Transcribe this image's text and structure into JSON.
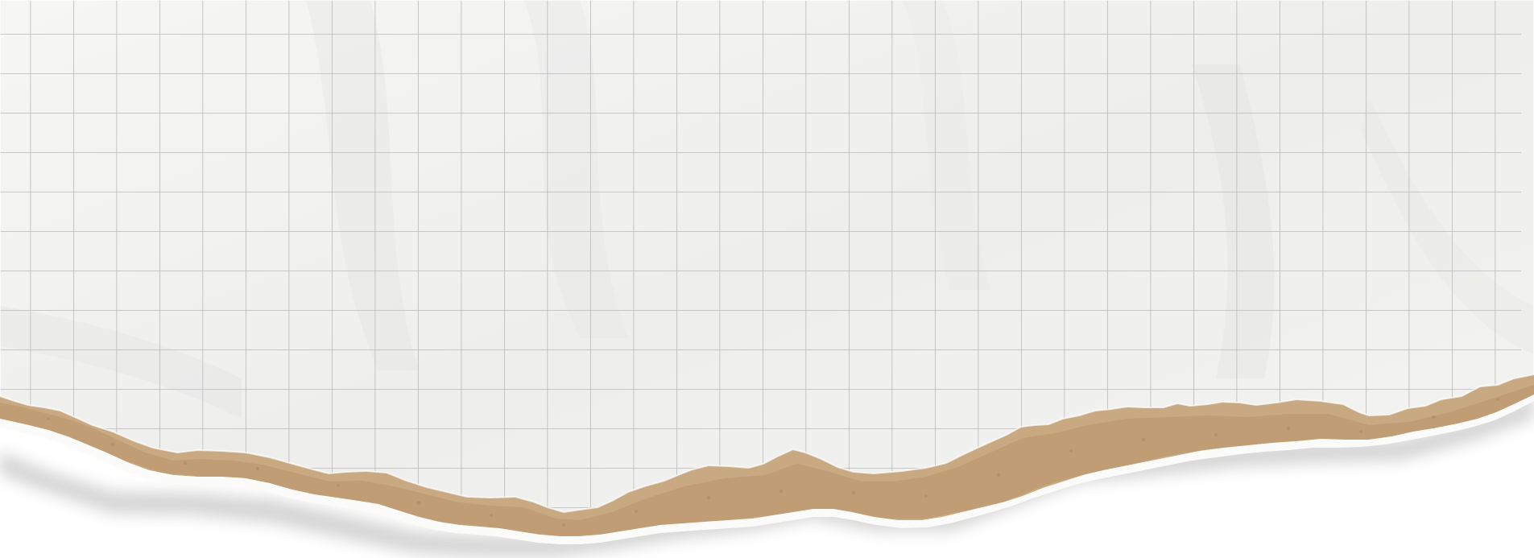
{
  "scene": {
    "subject": "torn-graph-paper",
    "colors": {
      "paper": "#f3f3f2",
      "paper_shade": "#e4e4e2",
      "grid_line": "#b9b9b9",
      "torn_fiber": "#c9a981",
      "torn_fiber_dark": "#b08c63",
      "shadow": "#bdbdbd",
      "background": "#ffffff"
    }
  }
}
